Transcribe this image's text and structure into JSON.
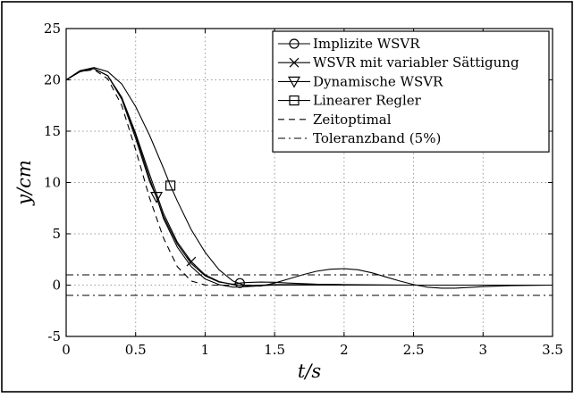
{
  "chart_data": {
    "type": "line",
    "xlabel": "t/s",
    "ylabel": "y/cm",
    "xlim": [
      0,
      3.5
    ],
    "ylim": [
      -5,
      25
    ],
    "x_ticks": [
      0,
      0.5,
      1,
      1.5,
      2,
      2.5,
      3,
      3.5
    ],
    "x_tick_labels": [
      "0",
      "0.5",
      "1",
      "1.5",
      "2",
      "2.5",
      "3",
      "3.5"
    ],
    "y_ticks": [
      -5,
      0,
      5,
      10,
      15,
      20,
      25
    ],
    "y_tick_labels": [
      "-5",
      "0",
      "5",
      "10",
      "15",
      "20",
      "25"
    ],
    "grid": true,
    "legend_position": "top-right",
    "series": [
      {
        "name": "Implizite WSVR",
        "marker": "circle",
        "line_style": "solid",
        "x": [
          0,
          0.1,
          0.2,
          0.3,
          0.4,
          0.5,
          0.6,
          0.7,
          0.8,
          0.9,
          1.0,
          1.1,
          1.2,
          1.25,
          1.3,
          1.4,
          1.5,
          1.6,
          1.8,
          2.0,
          2.5,
          3.0,
          3.5
        ],
        "y": [
          20.0,
          20.8,
          21.1,
          20.4,
          18.2,
          14.6,
          10.4,
          6.7,
          4.0,
          2.1,
          0.9,
          0.3,
          0.1,
          0.2,
          0.25,
          0.3,
          0.28,
          0.2,
          0.1,
          0.05,
          0.0,
          0.0,
          0.0
        ],
        "marker_points": [
          {
            "x": 1.25,
            "y": 0.2
          }
        ]
      },
      {
        "name": "WSVR mit variabler Sättigung",
        "marker": "x",
        "line_style": "solid",
        "x": [
          0,
          0.1,
          0.2,
          0.3,
          0.4,
          0.5,
          0.6,
          0.7,
          0.8,
          0.9,
          1.0,
          1.1,
          1.2,
          1.3,
          1.4,
          1.5,
          1.7,
          2.0,
          2.5,
          3.0,
          3.5
        ],
        "y": [
          20.0,
          20.8,
          21.1,
          20.4,
          18.3,
          14.8,
          10.8,
          7.0,
          4.2,
          2.3,
          1.0,
          0.35,
          0.05,
          -0.05,
          0.0,
          0.05,
          0.05,
          0.0,
          0.0,
          0.0,
          0.0
        ],
        "marker_points": [
          {
            "x": 0.9,
            "y": 2.3
          }
        ]
      },
      {
        "name": "Dynamische WSVR",
        "marker": "triangle-down",
        "line_style": "solid",
        "x": [
          0,
          0.1,
          0.2,
          0.3,
          0.4,
          0.5,
          0.6,
          0.65,
          0.7,
          0.8,
          0.9,
          1.0,
          1.1,
          1.2,
          1.3,
          1.4,
          1.5,
          1.7,
          2.0,
          2.5,
          3.0,
          3.5
        ],
        "y": [
          20.0,
          20.8,
          21.1,
          20.4,
          18.1,
          14.3,
          10.1,
          8.6,
          6.5,
          3.7,
          1.8,
          0.6,
          0.05,
          -0.2,
          -0.15,
          -0.05,
          0.0,
          0.0,
          0.0,
          0.0,
          0.0,
          0.0
        ],
        "marker_points": [
          {
            "x": 0.65,
            "y": 8.6
          }
        ]
      },
      {
        "name": "Linearer Regler",
        "marker": "square",
        "line_style": "solid",
        "x": [
          0,
          0.1,
          0.2,
          0.3,
          0.4,
          0.5,
          0.6,
          0.7,
          0.75,
          0.8,
          0.9,
          1.0,
          1.1,
          1.2,
          1.3,
          1.4,
          1.5,
          1.6,
          1.7,
          1.8,
          1.9,
          2.0,
          2.1,
          2.2,
          2.3,
          2.4,
          2.5,
          2.6,
          2.7,
          2.8,
          3.0,
          3.2,
          3.5
        ],
        "y": [
          20.0,
          20.9,
          21.2,
          20.8,
          19.6,
          17.4,
          14.6,
          11.4,
          9.7,
          8.2,
          5.4,
          3.2,
          1.5,
          0.4,
          -0.1,
          -0.1,
          0.2,
          0.6,
          1.0,
          1.35,
          1.55,
          1.6,
          1.5,
          1.2,
          0.8,
          0.4,
          0.05,
          -0.2,
          -0.3,
          -0.3,
          -0.15,
          -0.05,
          0.0
        ],
        "marker_points": [
          {
            "x": 0.75,
            "y": 9.7
          }
        ]
      },
      {
        "name": "Zeitoptimal",
        "marker": "none",
        "line_style": "dashed",
        "x": [
          0,
          0.1,
          0.2,
          0.3,
          0.4,
          0.5,
          0.6,
          0.7,
          0.8,
          0.9,
          1.0,
          1.05,
          1.1,
          1.2,
          1.3,
          1.5,
          2.0,
          2.5,
          3.0,
          3.5
        ],
        "y": [
          20.0,
          20.8,
          21.0,
          20.1,
          17.5,
          13.2,
          8.5,
          4.6,
          1.8,
          0.4,
          0.02,
          0.0,
          0.0,
          0.0,
          0.0,
          0.0,
          0.0,
          0.0,
          0.0,
          0.0
        ]
      },
      {
        "name": "Toleranzband (5%)",
        "marker": "none",
        "line_style": "dashdot",
        "x": [
          0,
          3.5
        ],
        "y": [
          1.0,
          1.0
        ],
        "mirror_y": [
          -1.0,
          -1.0
        ]
      }
    ]
  },
  "colors": {
    "line": "#000000",
    "grid": "#9a9a9a",
    "background": "#ffffff"
  }
}
